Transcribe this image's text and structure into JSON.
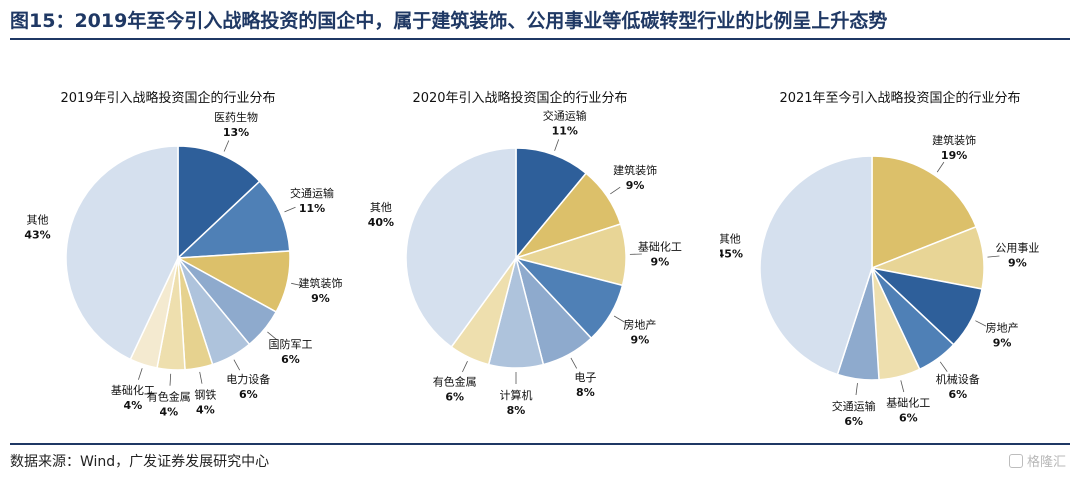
{
  "header": {
    "title": "图15：2019年至今引入战略投资的国企中，属于建筑装饰、公用事业等低碳转型行业的比例呈上升态势"
  },
  "footer": {
    "source": "数据来源：Wind，广发证券发展研究中心",
    "watermark": "格隆汇"
  },
  "chart_data": [
    {
      "type": "pie",
      "title": "2019年引入战略投资国企的行业分布",
      "start_angle_deg": 0,
      "direction": "clockwise",
      "slices": [
        {
          "label": "医药生物",
          "value": 13,
          "value_label": "13%",
          "color": "#2e5f9a"
        },
        {
          "label": "交通运输",
          "value": 11,
          "value_label": "11%",
          "color": "#4f80b6"
        },
        {
          "label": "建筑装饰",
          "value": 9,
          "value_label": "9%",
          "color": "#dcc06a"
        },
        {
          "label": "国防军工",
          "value": 6,
          "value_label": "6%",
          "color": "#8eaacd"
        },
        {
          "label": "电力设备",
          "value": 6,
          "value_label": "6%",
          "color": "#aec3dc"
        },
        {
          "label": "钢铁",
          "value": 4,
          "value_label": "4%",
          "color": "#e6d28f"
        },
        {
          "label": "有色金属",
          "value": 4,
          "value_label": "4%",
          "color": "#eedfae"
        },
        {
          "label": "基础化工",
          "value": 4,
          "value_label": "4%",
          "color": "#f4ead0"
        },
        {
          "label": "其他",
          "value": 43,
          "value_label": "43%",
          "color": "#d5e0ee"
        }
      ]
    },
    {
      "type": "pie",
      "title": "2020年引入战略投资国企的行业分布",
      "start_angle_deg": 0,
      "direction": "clockwise",
      "slices": [
        {
          "label": "交通运输",
          "value": 11,
          "value_label": "11%",
          "color": "#2e5f9a"
        },
        {
          "label": "建筑装饰",
          "value": 9,
          "value_label": "9%",
          "color": "#dcc06a"
        },
        {
          "label": "基础化工",
          "value": 9,
          "value_label": "9%",
          "color": "#e8d596"
        },
        {
          "label": "房地产",
          "value": 9,
          "value_label": "9%",
          "color": "#4f80b6"
        },
        {
          "label": "电子",
          "value": 8,
          "value_label": "8%",
          "color": "#8eaacd"
        },
        {
          "label": "计算机",
          "value": 8,
          "value_label": "8%",
          "color": "#aec3dc"
        },
        {
          "label": "有色金属",
          "value": 6,
          "value_label": "6%",
          "color": "#eedfae"
        },
        {
          "label": "其他",
          "value": 40,
          "value_label": "40%",
          "color": "#d5e0ee"
        }
      ]
    },
    {
      "type": "pie",
      "title": "2021年至今引入战略投资国企的行业分布",
      "start_angle_deg": 0,
      "direction": "clockwise",
      "slices": [
        {
          "label": "建筑装饰",
          "value": 19,
          "value_label": "19%",
          "color": "#dcc06a"
        },
        {
          "label": "公用事业",
          "value": 9,
          "value_label": "9%",
          "color": "#e8d596"
        },
        {
          "label": "房地产",
          "value": 9,
          "value_label": "9%",
          "color": "#2e5f9a"
        },
        {
          "label": "机械设备",
          "value": 6,
          "value_label": "6%",
          "color": "#4f80b6"
        },
        {
          "label": "基础化工",
          "value": 6,
          "value_label": "6%",
          "color": "#eedfae"
        },
        {
          "label": "交通运输",
          "value": 6,
          "value_label": "6%",
          "color": "#8eaacd"
        },
        {
          "label": "其他",
          "value": 45,
          "value_label": "45%",
          "color": "#d5e0ee"
        }
      ]
    }
  ]
}
